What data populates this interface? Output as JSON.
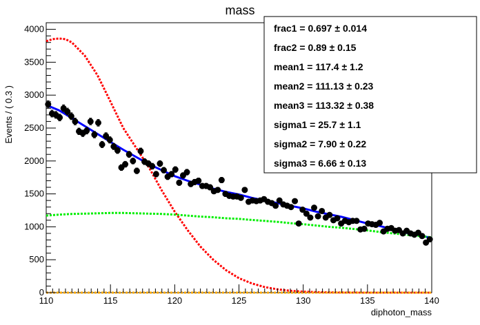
{
  "chart_data": {
    "type": "scatter",
    "title": "mass",
    "xlabel": "diphoton_mass",
    "ylabel": "Events / ( 0.3 )",
    "xlim": [
      110,
      140
    ],
    "ylim": [
      0,
      4100
    ],
    "x_ticks": [
      "110",
      "115",
      "120",
      "125",
      "130",
      "135",
      "140"
    ],
    "y_ticks": [
      "0",
      "500",
      "1000",
      "1500",
      "2000",
      "2500",
      "3000",
      "3500",
      "4000"
    ],
    "grid": false,
    "legend": "top-right",
    "series": [
      {
        "kind": "points",
        "color": "#000000",
        "x": [
          110.15,
          110.45,
          110.75,
          111.05,
          111.35,
          111.65,
          111.95,
          112.25,
          112.55,
          112.85,
          113.15,
          113.45,
          113.75,
          114.05,
          114.35,
          114.65,
          114.95,
          115.25,
          115.55,
          115.85,
          116.15,
          116.45,
          116.75,
          117.05,
          117.35,
          117.65,
          117.95,
          118.25,
          118.55,
          118.85,
          119.15,
          119.45,
          119.75,
          120.05,
          120.35,
          120.65,
          120.95,
          121.25,
          121.55,
          121.85,
          122.15,
          122.45,
          122.75,
          123.05,
          123.35,
          123.65,
          123.95,
          124.25,
          124.55,
          124.85,
          125.15,
          125.45,
          125.75,
          126.05,
          126.35,
          126.65,
          126.95,
          127.25,
          127.55,
          127.85,
          128.15,
          128.45,
          128.75,
          129.05,
          129.35,
          129.65,
          129.95,
          130.25,
          130.55,
          130.85,
          131.15,
          131.45,
          131.75,
          132.05,
          132.35,
          132.65,
          132.95,
          133.25,
          133.55,
          133.85,
          134.15,
          134.45,
          134.75,
          135.05,
          135.35,
          135.65,
          135.95,
          136.25,
          136.55,
          136.85,
          137.15,
          137.45,
          137.75,
          138.05,
          138.35,
          138.65,
          138.95,
          139.25,
          139.55,
          139.85
        ],
        "y": [
          2860,
          2720,
          2700,
          2660,
          2800,
          2750,
          2680,
          2600,
          2450,
          2420,
          2460,
          2600,
          2400,
          2580,
          2250,
          2380,
          2320,
          2220,
          2160,
          1900,
          1950,
          2100,
          2000,
          1850,
          2150,
          1990,
          1960,
          1920,
          1800,
          1960,
          1860,
          1760,
          1800,
          1870,
          1670,
          1780,
          1830,
          1650,
          1680,
          1700,
          1620,
          1620,
          1600,
          1540,
          1560,
          1710,
          1500,
          1470,
          1460,
          1460,
          1440,
          1560,
          1380,
          1400,
          1390,
          1400,
          1420,
          1380,
          1360,
          1320,
          1400,
          1340,
          1320,
          1300,
          1390,
          1050,
          1260,
          1200,
          1140,
          1290,
          1160,
          1240,
          1140,
          1180,
          1100,
          1130,
          1050,
          1090,
          1070,
          1090,
          1090,
          960,
          970,
          1050,
          1040,
          1030,
          1060,
          930,
          970,
          980,
          940,
          950,
          900,
          940,
          900,
          880,
          910,
          860,
          760,
          810
        ],
        "yerr": [
          55,
          52,
          52,
          51,
          53,
          52,
          52,
          51,
          49,
          49,
          50,
          51,
          49,
          51,
          47,
          49,
          48,
          47,
          46,
          44,
          44,
          46,
          45,
          43,
          46,
          45,
          44,
          44,
          42,
          44,
          43,
          42,
          42,
          43,
          41,
          42,
          43,
          41,
          41,
          41,
          40,
          40,
          40,
          39,
          39,
          41,
          39,
          38,
          38,
          38,
          38,
          39,
          37,
          37,
          37,
          37,
          38,
          37,
          37,
          36,
          37,
          37,
          36,
          36,
          37,
          32,
          35,
          35,
          34,
          36,
          34,
          35,
          34,
          34,
          33,
          34,
          32,
          33,
          33,
          33,
          33,
          31,
          31,
          32,
          32,
          32,
          33,
          30,
          31,
          31,
          31,
          31,
          30,
          31,
          30,
          30,
          30,
          29,
          28,
          28
        ]
      },
      {
        "kind": "total-fit",
        "color": "#0000ff",
        "x": [
          110,
          111,
          112,
          113,
          114,
          115,
          116,
          117,
          118,
          119,
          120,
          121,
          122,
          123,
          124,
          125,
          126,
          127,
          128,
          129,
          130,
          131,
          132,
          133,
          134,
          135,
          136,
          137,
          138,
          139,
          140
        ],
        "y": [
          2850,
          2770,
          2650,
          2530,
          2410,
          2290,
          2170,
          2060,
          1950,
          1860,
          1770,
          1700,
          1640,
          1580,
          1530,
          1490,
          1440,
          1400,
          1360,
          1320,
          1280,
          1230,
          1190,
          1150,
          1100,
          1050,
          1010,
          960,
          910,
          870,
          830
        ]
      },
      {
        "kind": "component-1",
        "color": "#ff0000",
        "x": [
          110,
          110.5,
          111,
          111.5,
          112,
          113,
          114,
          115,
          116,
          117,
          118,
          119,
          120,
          121,
          122,
          123,
          124,
          125,
          126,
          127,
          128,
          129,
          130,
          131,
          132,
          133,
          134,
          135,
          136,
          137,
          138,
          139,
          140
        ],
        "y": [
          3820,
          3850,
          3860,
          3850,
          3800,
          3600,
          3300,
          2900,
          2500,
          2200,
          1900,
          1550,
          1230,
          950,
          700,
          500,
          340,
          220,
          140,
          85,
          50,
          28,
          15,
          8,
          4,
          2,
          1,
          0,
          0,
          0,
          0,
          0,
          0
        ]
      },
      {
        "kind": "component-2",
        "color": "#00ee00",
        "x": [
          110,
          111,
          112,
          113,
          114,
          115,
          116,
          117,
          118,
          119,
          120,
          121,
          122,
          123,
          124,
          125,
          126,
          127,
          128,
          129,
          130,
          131,
          132,
          133,
          134,
          135,
          136,
          137,
          138,
          139,
          140
        ],
        "y": [
          1170,
          1185,
          1195,
          1200,
          1205,
          1210,
          1210,
          1205,
          1200,
          1195,
          1185,
          1170,
          1155,
          1145,
          1130,
          1120,
          1105,
          1090,
          1075,
          1055,
          1040,
          1020,
          1000,
          985,
          965,
          945,
          920,
          900,
          880,
          860,
          840
        ]
      },
      {
        "kind": "component-3",
        "color": "#ffaa00",
        "x": [
          110,
          140
        ],
        "y": [
          0,
          0
        ]
      }
    ],
    "stats": [
      {
        "name": "frac1 =",
        "value": "0.697",
        "err": "± 0.014"
      },
      {
        "name": "frac2 =",
        "value": "0.89",
        "err": "± 0.15"
      },
      {
        "name": "mean1 =",
        "value": "117.4",
        "err": "± 1.2"
      },
      {
        "name": "mean2 =",
        "value": "111.13",
        "err": "± 0.23"
      },
      {
        "name": "mean3 =",
        "value": "113.32",
        "err": "± 0.38"
      },
      {
        "name": "sigma1 =",
        "value": "25.7",
        "err": "± 1.1"
      },
      {
        "name": "sigma2 =",
        "value": "7.90",
        "err": "± 0.22"
      },
      {
        "name": "sigma3 =",
        "value": "6.66",
        "err": "± 0.13"
      }
    ]
  }
}
